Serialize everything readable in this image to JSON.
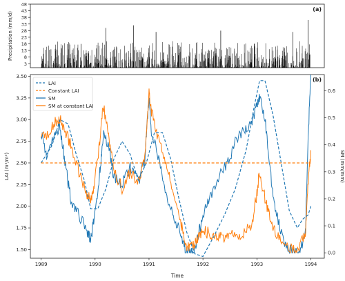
{
  "chart_data": [
    {
      "type": "bar",
      "panel_label": "(a)",
      "ylabel": "Precipitation (mm/d)",
      "yticks": [
        3,
        8,
        13,
        18,
        23,
        28,
        33,
        38,
        43,
        48
      ],
      "ylim": [
        0,
        48
      ],
      "xlim": [
        1988.8,
        1994.25
      ],
      "notable_peaks": [
        {
          "x": 1990.2,
          "value": 30
        },
        {
          "x": 1990.71,
          "value": 32
        },
        {
          "x": 1991.13,
          "value": 27
        },
        {
          "x": 1992.33,
          "value": 28
        },
        {
          "x": 1993.67,
          "value": 27
        },
        {
          "x": 1993.95,
          "value": 36
        }
      ],
      "grid": false
    },
    {
      "type": "line",
      "panel_label": "(b)",
      "xlabel": "Time",
      "xticks": [
        1989,
        1990,
        1991,
        1992,
        1993,
        1994
      ],
      "xlim": [
        1988.8,
        1994.25
      ],
      "ylabel": "LAI (m²/m²)",
      "yticks": [
        "1.50",
        "1.75",
        "2.00",
        "2.25",
        "2.50",
        "2.75",
        "3.00",
        "3.25",
        "3.50"
      ],
      "ylim": [
        1.4,
        3.52
      ],
      "y2label": "SM (mm/mm)",
      "y2ticks": [
        "0.0",
        "0.1",
        "0.2",
        "0.3",
        "0.4",
        "0.5",
        "0.6"
      ],
      "y2lim": [
        -0.02,
        0.66
      ],
      "legend_position": "top-left",
      "legend": [
        "LAI",
        "Constant LAI",
        "SM",
        "SM at constant LAI"
      ],
      "series": [
        {
          "name": "LAI",
          "axis": "left",
          "style": "dashed",
          "color": "#1f77b4",
          "x": [
            1989.0,
            1989.2,
            1989.35,
            1989.5,
            1989.65,
            1989.8,
            1989.92,
            1990.05,
            1990.2,
            1990.35,
            1990.5,
            1990.65,
            1990.8,
            1990.95,
            1991.1,
            1991.25,
            1991.4,
            1991.55,
            1991.7,
            1991.85,
            1992.0,
            1992.2,
            1992.4,
            1992.6,
            1992.8,
            1992.95,
            1993.05,
            1993.15,
            1993.3,
            1993.45,
            1993.6,
            1993.75,
            1993.85,
            1993.95,
            1994.0
          ],
          "y": [
            2.5,
            2.7,
            3.0,
            2.95,
            2.6,
            2.3,
            1.97,
            1.97,
            2.2,
            2.55,
            2.75,
            2.6,
            2.3,
            2.5,
            2.85,
            2.85,
            2.55,
            2.1,
            1.7,
            1.45,
            1.42,
            1.65,
            1.9,
            2.2,
            2.65,
            3.15,
            3.45,
            3.45,
            3.05,
            2.5,
            1.95,
            1.75,
            1.85,
            1.9,
            2.0
          ]
        },
        {
          "name": "Constant LAI",
          "axis": "left",
          "style": "dashed",
          "color": "#ff7f0e",
          "x": [
            1989.0,
            1994.0
          ],
          "y": [
            2.5,
            2.5
          ]
        },
        {
          "name": "SM",
          "axis": "right",
          "style": "solid",
          "color": "#1f77b4",
          "x": [
            1989.0,
            1989.1,
            1989.25,
            1989.35,
            1989.45,
            1989.55,
            1989.7,
            1989.85,
            1989.92,
            1989.98,
            1990.08,
            1990.15,
            1990.25,
            1990.35,
            1990.5,
            1990.65,
            1990.8,
            1990.92,
            1991.0,
            1991.05,
            1991.15,
            1991.3,
            1991.45,
            1991.6,
            1991.7,
            1991.8,
            1991.9,
            1992.0,
            1992.15,
            1992.3,
            1992.45,
            1992.6,
            1992.75,
            1992.9,
            1993.0,
            1993.05,
            1993.15,
            1993.25,
            1993.35,
            1993.5,
            1993.65,
            1993.8,
            1993.9,
            1993.95,
            1994.0
          ],
          "y": [
            0.45,
            0.36,
            0.43,
            0.47,
            0.32,
            0.2,
            0.14,
            0.08,
            0.05,
            0.12,
            0.28,
            0.44,
            0.4,
            0.28,
            0.25,
            0.32,
            0.26,
            0.34,
            0.58,
            0.42,
            0.38,
            0.22,
            0.15,
            0.05,
            0.0,
            0.0,
            0.05,
            0.14,
            0.22,
            0.28,
            0.33,
            0.41,
            0.45,
            0.48,
            0.55,
            0.57,
            0.5,
            0.3,
            0.15,
            0.05,
            0.0,
            0.0,
            0.08,
            0.42,
            0.66
          ]
        },
        {
          "name": "SM at constant LAI",
          "axis": "right",
          "style": "solid",
          "color": "#ff7f0e",
          "x": [
            1989.0,
            1989.1,
            1989.25,
            1989.35,
            1989.45,
            1989.55,
            1989.7,
            1989.85,
            1989.92,
            1989.98,
            1990.08,
            1990.15,
            1990.25,
            1990.35,
            1990.5,
            1990.65,
            1990.8,
            1990.92,
            1991.0,
            1991.05,
            1991.15,
            1991.3,
            1991.45,
            1991.6,
            1991.7,
            1991.8,
            1991.9,
            1992.0,
            1992.15,
            1992.3,
            1992.45,
            1992.6,
            1992.75,
            1992.9,
            1993.0,
            1993.05,
            1993.15,
            1993.25,
            1993.35,
            1993.5,
            1993.65,
            1993.8,
            1993.9,
            1993.95,
            1994.0
          ],
          "y": [
            0.45,
            0.43,
            0.48,
            0.5,
            0.45,
            0.4,
            0.3,
            0.22,
            0.19,
            0.25,
            0.4,
            0.55,
            0.44,
            0.3,
            0.24,
            0.3,
            0.26,
            0.35,
            0.59,
            0.52,
            0.44,
            0.34,
            0.22,
            0.1,
            0.02,
            0.02,
            0.05,
            0.08,
            0.07,
            0.06,
            0.06,
            0.07,
            0.07,
            0.1,
            0.22,
            0.3,
            0.2,
            0.12,
            0.08,
            0.03,
            0.01,
            0.02,
            0.08,
            0.25,
            0.38
          ]
        }
      ],
      "grid": false
    }
  ]
}
